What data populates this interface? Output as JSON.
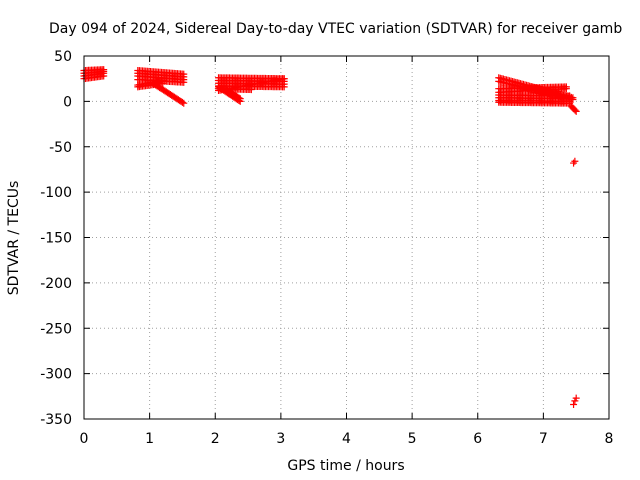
{
  "chart_data": {
    "type": "scatter",
    "title": "Day 094 of 2024, Sidereal Day-to-day VTEC variation (SDTVAR) for receiver gamb",
    "xlabel": "GPS time / hours",
    "ylabel": "SDTVAR / TECUs",
    "xlim": [
      0,
      8
    ],
    "ylim": [
      -350,
      50
    ],
    "xticks": [
      "0",
      "1",
      "2",
      "3",
      "4",
      "5",
      "6",
      "7",
      "8"
    ],
    "yticks": [
      "50",
      "0",
      "-50",
      "-100",
      "-150",
      "-200",
      "-250",
      "-300",
      "-350"
    ],
    "grid": true,
    "legend": "none",
    "marker": "plus",
    "color": "#ff0000",
    "tracks": [
      {
        "x0": 0.0,
        "y0": 34,
        "x1": 0.3,
        "y1": 35
      },
      {
        "x0": 0.0,
        "y0": 31,
        "x1": 0.3,
        "y1": 33
      },
      {
        "x0": 0.0,
        "y0": 28,
        "x1": 0.3,
        "y1": 31
      },
      {
        "x0": 0.0,
        "y0": 25,
        "x1": 0.3,
        "y1": 28
      },
      {
        "x0": 0.82,
        "y0": 34,
        "x1": 1.52,
        "y1": 30
      },
      {
        "x0": 0.82,
        "y0": 31,
        "x1": 1.52,
        "y1": 27
      },
      {
        "x0": 0.82,
        "y0": 28,
        "x1": 1.52,
        "y1": 24
      },
      {
        "x0": 0.82,
        "y0": 24,
        "x1": 1.52,
        "y1": 21
      },
      {
        "x0": 0.82,
        "y0": 18,
        "x1": 1.2,
        "y1": 23
      },
      {
        "x0": 0.82,
        "y0": 16,
        "x1": 1.2,
        "y1": 20
      },
      {
        "x0": 1.05,
        "y0": 20,
        "x1": 1.52,
        "y1": -2
      },
      {
        "x0": 2.05,
        "y0": 26,
        "x1": 3.05,
        "y1": 25
      },
      {
        "x0": 2.05,
        "y0": 23,
        "x1": 3.05,
        "y1": 22
      },
      {
        "x0": 2.05,
        "y0": 20,
        "x1": 3.05,
        "y1": 19
      },
      {
        "x0": 2.05,
        "y0": 17,
        "x1": 3.05,
        "y1": 16
      },
      {
        "x0": 2.05,
        "y0": 14,
        "x1": 2.55,
        "y1": 13
      },
      {
        "x0": 2.05,
        "y0": 12,
        "x1": 3.05,
        "y1": 25
      },
      {
        "x0": 2.05,
        "y0": 16,
        "x1": 2.38,
        "y1": 0
      },
      {
        "x0": 2.15,
        "y0": 14,
        "x1": 2.38,
        "y1": 3
      },
      {
        "x0": 6.32,
        "y0": 26,
        "x1": 7.45,
        "y1": 4
      },
      {
        "x0": 6.32,
        "y0": 22,
        "x1": 7.45,
        "y1": 2
      },
      {
        "x0": 6.32,
        "y0": 14,
        "x1": 7.35,
        "y1": 16
      },
      {
        "x0": 6.32,
        "y0": 10,
        "x1": 7.35,
        "y1": 14
      },
      {
        "x0": 6.32,
        "y0": 7,
        "x1": 7.4,
        "y1": 6
      },
      {
        "x0": 6.32,
        "y0": 4,
        "x1": 7.4,
        "y1": 3
      },
      {
        "x0": 6.32,
        "y0": 1,
        "x1": 7.4,
        "y1": 0
      },
      {
        "x0": 6.32,
        "y0": -1,
        "x1": 7.4,
        "y1": -2
      },
      {
        "x0": 7.42,
        "y0": -5,
        "x1": 7.5,
        "y1": -11
      }
    ],
    "points": [
      {
        "x": 7.48,
        "y": -66
      },
      {
        "x": 7.46,
        "y": -68
      },
      {
        "x": 7.5,
        "y": -327
      },
      {
        "x": 7.48,
        "y": -330
      },
      {
        "x": 7.46,
        "y": -334
      }
    ]
  }
}
